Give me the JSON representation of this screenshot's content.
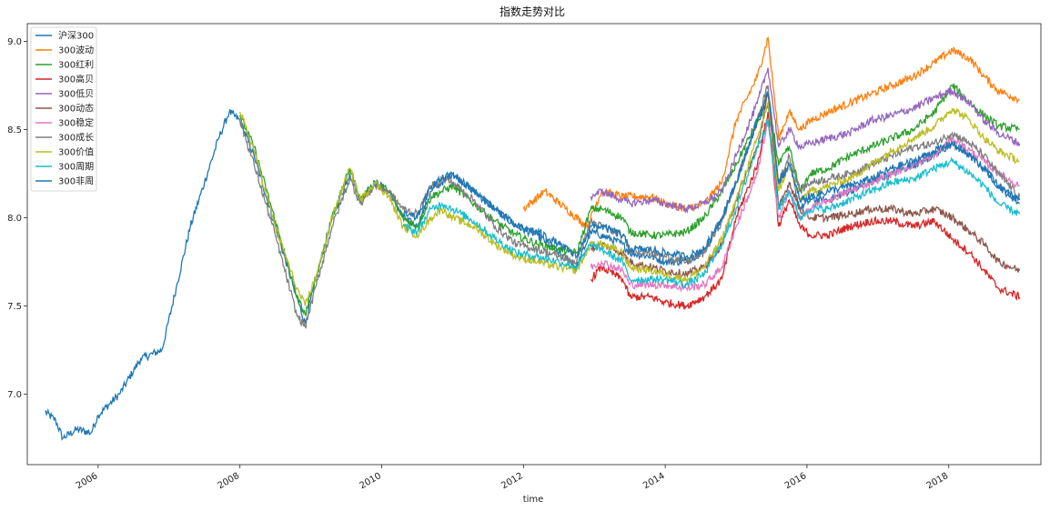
{
  "chart_data": {
    "type": "line",
    "title": "指数走势对比",
    "xlabel": "time",
    "ylabel": "",
    "xlim": [
      2005.0,
      2019.3
    ],
    "ylim": [
      6.6,
      9.1
    ],
    "x_ticks": [
      {
        "value": 2006,
        "label": "2006"
      },
      {
        "value": 2008,
        "label": "2008"
      },
      {
        "value": 2010,
        "label": "2010"
      },
      {
        "value": 2012,
        "label": "2012"
      },
      {
        "value": 2014,
        "label": "2014"
      },
      {
        "value": 2016,
        "label": "2016"
      },
      {
        "value": 2018,
        "label": "2018"
      }
    ],
    "y_ticks": [
      {
        "value": 7.0,
        "label": "7.0"
      },
      {
        "value": 7.5,
        "label": "7.5"
      },
      {
        "value": 8.0,
        "label": "8.0"
      },
      {
        "value": 8.5,
        "label": "8.5"
      },
      {
        "value": 9.0,
        "label": "9.0"
      }
    ],
    "legend_position": "top-left",
    "grid": false,
    "series": [
      {
        "name": "沪深300",
        "color": "#1f77b4",
        "x": [
          2005.25,
          2005.4,
          2005.5,
          2005.7,
          2005.9,
          2006.0,
          2006.3,
          2006.6,
          2006.9,
          2007.1,
          2007.3,
          2007.5,
          2007.7,
          2007.85,
          2008.0,
          2008.2,
          2008.5,
          2008.8,
          2008.92,
          2009.1,
          2009.3,
          2009.55,
          2009.7,
          2009.9,
          2010.1,
          2010.3,
          2010.5,
          2010.7,
          2010.85,
          2011.0,
          2011.3,
          2011.6,
          2011.9,
          2012.2,
          2012.5,
          2012.75,
          2012.95,
          2013.1,
          2013.4,
          2013.5,
          2013.8,
          2014.0,
          2014.3,
          2014.55,
          2014.8,
          2015.0,
          2015.3,
          2015.45,
          2015.6,
          2015.75,
          2015.9,
          2016.05,
          2016.3,
          2016.6,
          2016.9,
          2017.2,
          2017.5,
          2017.8,
          2018.05,
          2018.3,
          2018.5,
          2018.7,
          2019.0
        ],
        "values": [
          6.9,
          6.85,
          6.75,
          6.8,
          6.78,
          6.88,
          7.0,
          7.2,
          7.25,
          7.6,
          7.95,
          8.2,
          8.45,
          8.6,
          8.55,
          8.35,
          7.95,
          7.55,
          7.4,
          7.7,
          8.0,
          8.25,
          8.1,
          8.2,
          8.15,
          8.0,
          7.95,
          8.15,
          8.2,
          8.25,
          8.15,
          8.05,
          7.95,
          7.9,
          7.8,
          7.72,
          7.92,
          7.9,
          7.85,
          7.8,
          7.78,
          7.75,
          7.75,
          7.82,
          8.0,
          8.2,
          8.55,
          8.65,
          8.2,
          8.3,
          8.05,
          8.1,
          8.1,
          8.15,
          8.2,
          8.25,
          8.3,
          8.35,
          8.42,
          8.35,
          8.28,
          8.18,
          8.08
        ]
      },
      {
        "name": "300波动",
        "color": "#ff7f0e",
        "x": [
          2012.0,
          2012.3,
          2012.6,
          2012.9,
          2013.1,
          2013.4,
          2013.8,
          2014.0,
          2014.3,
          2014.55,
          2014.8,
          2015.0,
          2015.3,
          2015.45,
          2015.6,
          2015.75,
          2015.9,
          2016.05,
          2016.3,
          2016.6,
          2016.9,
          2017.2,
          2017.5,
          2017.8,
          2018.05,
          2018.3,
          2018.5,
          2018.7,
          2019.0
        ],
        "values": [
          8.05,
          8.15,
          8.05,
          7.95,
          8.15,
          8.12,
          8.12,
          8.08,
          8.05,
          8.08,
          8.2,
          8.55,
          8.8,
          9.02,
          8.45,
          8.6,
          8.5,
          8.55,
          8.6,
          8.65,
          8.7,
          8.75,
          8.8,
          8.88,
          8.95,
          8.9,
          8.8,
          8.72,
          8.67
        ]
      },
      {
        "name": "300红利",
        "color": "#2ca02c",
        "x": [
          2008.0,
          2008.2,
          2008.5,
          2008.8,
          2008.92,
          2009.1,
          2009.3,
          2009.55,
          2009.7,
          2009.9,
          2010.1,
          2010.3,
          2010.5,
          2010.7,
          2010.85,
          2011.0,
          2011.3,
          2011.6,
          2011.9,
          2012.2,
          2012.5,
          2012.75,
          2012.95,
          2013.1,
          2013.4,
          2013.5,
          2013.8,
          2014.0,
          2014.3,
          2014.55,
          2014.8,
          2015.0,
          2015.3,
          2015.45,
          2015.6,
          2015.75,
          2015.9,
          2016.05,
          2016.3,
          2016.6,
          2016.9,
          2017.2,
          2017.5,
          2017.8,
          2018.05,
          2018.3,
          2018.5,
          2018.7,
          2019.0
        ],
        "values": [
          8.58,
          8.4,
          7.98,
          7.55,
          7.45,
          7.7,
          8.0,
          8.28,
          8.1,
          8.2,
          8.15,
          8.0,
          7.95,
          8.12,
          8.15,
          8.18,
          8.08,
          7.98,
          7.9,
          7.85,
          7.82,
          7.8,
          8.05,
          8.05,
          8.0,
          7.92,
          7.9,
          7.9,
          7.92,
          8.0,
          8.15,
          8.3,
          8.55,
          8.7,
          8.3,
          8.4,
          8.15,
          8.25,
          8.28,
          8.35,
          8.4,
          8.45,
          8.5,
          8.6,
          8.75,
          8.65,
          8.58,
          8.52,
          8.5
        ]
      },
      {
        "name": "300高贝",
        "color": "#d62728",
        "x": [
          2012.95,
          2013.1,
          2013.4,
          2013.5,
          2013.8,
          2014.0,
          2014.3,
          2014.55,
          2014.8,
          2015.0,
          2015.3,
          2015.45,
          2015.6,
          2015.75,
          2015.9,
          2016.05,
          2016.3,
          2016.6,
          2016.9,
          2017.2,
          2017.5,
          2017.8,
          2018.05,
          2018.3,
          2018.5,
          2018.7,
          2019.0
        ],
        "values": [
          7.65,
          7.72,
          7.65,
          7.55,
          7.55,
          7.52,
          7.5,
          7.55,
          7.65,
          8.0,
          8.3,
          8.6,
          7.95,
          8.1,
          7.95,
          7.9,
          7.9,
          7.95,
          7.98,
          7.98,
          7.95,
          7.98,
          7.88,
          7.8,
          7.7,
          7.6,
          7.55
        ]
      },
      {
        "name": "300低贝",
        "color": "#9467bd",
        "x": [
          2012.95,
          2013.1,
          2013.4,
          2013.5,
          2013.8,
          2014.0,
          2014.3,
          2014.55,
          2014.8,
          2015.0,
          2015.3,
          2015.45,
          2015.6,
          2015.75,
          2015.9,
          2016.05,
          2016.3,
          2016.6,
          2016.9,
          2017.2,
          2017.5,
          2017.8,
          2018.05,
          2018.3,
          2018.5,
          2018.7,
          2019.0
        ],
        "values": [
          8.12,
          8.15,
          8.1,
          8.08,
          8.1,
          8.08,
          8.05,
          8.08,
          8.15,
          8.35,
          8.65,
          8.85,
          8.4,
          8.5,
          8.4,
          8.42,
          8.45,
          8.48,
          8.55,
          8.58,
          8.62,
          8.68,
          8.72,
          8.65,
          8.55,
          8.48,
          8.42
        ]
      },
      {
        "name": "300动态",
        "color": "#8c564b",
        "x": [
          2012.95,
          2013.1,
          2013.4,
          2013.5,
          2013.8,
          2014.0,
          2014.3,
          2014.55,
          2014.8,
          2015.0,
          2015.3,
          2015.45,
          2015.6,
          2015.75,
          2015.9,
          2016.05,
          2016.3,
          2016.6,
          2016.9,
          2017.2,
          2017.5,
          2017.8,
          2018.05,
          2018.3,
          2018.5,
          2018.7,
          2019.0
        ],
        "values": [
          7.82,
          7.85,
          7.8,
          7.75,
          7.72,
          7.7,
          7.68,
          7.72,
          7.85,
          8.1,
          8.4,
          8.7,
          8.05,
          8.2,
          8.05,
          8.0,
          8.0,
          8.02,
          8.05,
          8.05,
          8.02,
          8.05,
          8.0,
          7.92,
          7.85,
          7.75,
          7.7
        ]
      },
      {
        "name": "300稳定",
        "color": "#e377c2",
        "x": [
          2012.95,
          2013.1,
          2013.4,
          2013.5,
          2013.8,
          2014.0,
          2014.3,
          2014.55,
          2014.8,
          2015.0,
          2015.3,
          2015.45,
          2015.6,
          2015.75,
          2015.9,
          2016.05,
          2016.3,
          2016.6,
          2016.9,
          2017.2,
          2017.5,
          2017.8,
          2018.05,
          2018.3,
          2018.5,
          2018.7,
          2019.0
        ],
        "values": [
          7.72,
          7.75,
          7.7,
          7.62,
          7.62,
          7.62,
          7.6,
          7.62,
          7.72,
          7.95,
          8.25,
          8.55,
          8.0,
          8.15,
          8.0,
          8.05,
          8.1,
          8.15,
          8.2,
          8.25,
          8.3,
          8.35,
          8.45,
          8.38,
          8.32,
          8.25,
          8.18
        ]
      },
      {
        "name": "300成长",
        "color": "#7f7f7f",
        "x": [
          2008.0,
          2008.2,
          2008.5,
          2008.8,
          2008.92,
          2009.1,
          2009.3,
          2009.55,
          2009.7,
          2009.9,
          2010.1,
          2010.3,
          2010.5,
          2010.7,
          2010.85,
          2011.0,
          2011.3,
          2011.6,
          2011.9,
          2012.2,
          2012.5,
          2012.75,
          2012.95,
          2013.1,
          2013.4,
          2013.5,
          2013.8,
          2014.0,
          2014.3,
          2014.55,
          2014.8,
          2015.0,
          2015.3,
          2015.45,
          2015.6,
          2015.75,
          2015.9,
          2016.05,
          2016.3,
          2016.6,
          2016.9,
          2017.2,
          2017.5,
          2017.8,
          2018.05,
          2018.3,
          2018.5,
          2018.7,
          2019.0
        ],
        "values": [
          8.55,
          8.3,
          7.9,
          7.45,
          7.38,
          7.65,
          7.95,
          8.22,
          8.08,
          8.18,
          8.15,
          8.05,
          8.02,
          8.18,
          8.22,
          8.2,
          8.1,
          7.95,
          7.85,
          7.82,
          7.78,
          7.75,
          7.98,
          7.95,
          7.9,
          7.82,
          7.8,
          7.78,
          7.75,
          7.8,
          7.98,
          8.2,
          8.55,
          8.75,
          8.2,
          8.35,
          8.15,
          8.2,
          8.22,
          8.25,
          8.3,
          8.35,
          8.4,
          8.42,
          8.48,
          8.42,
          8.35,
          8.25,
          8.12
        ]
      },
      {
        "name": "300价值",
        "color": "#bcbd22",
        "x": [
          2008.0,
          2008.2,
          2008.5,
          2008.8,
          2008.92,
          2009.1,
          2009.3,
          2009.55,
          2009.7,
          2009.9,
          2010.1,
          2010.3,
          2010.5,
          2010.7,
          2010.85,
          2011.0,
          2011.3,
          2011.6,
          2011.9,
          2012.2,
          2012.5,
          2012.75,
          2012.95,
          2013.1,
          2013.4,
          2013.5,
          2013.8,
          2014.0,
          2014.3,
          2014.55,
          2014.8,
          2015.0,
          2015.3,
          2015.45,
          2015.6,
          2015.75,
          2015.9,
          2016.05,
          2016.3,
          2016.6,
          2016.9,
          2017.2,
          2017.5,
          2017.8,
          2018.05,
          2018.3,
          2018.5,
          2018.7,
          2019.0
        ],
        "values": [
          8.6,
          8.38,
          7.95,
          7.6,
          7.5,
          7.7,
          8.0,
          8.28,
          8.1,
          8.2,
          8.12,
          7.95,
          7.9,
          8.0,
          8.05,
          8.0,
          7.95,
          7.85,
          7.78,
          7.75,
          7.72,
          7.7,
          7.85,
          7.85,
          7.8,
          7.72,
          7.7,
          7.68,
          7.65,
          7.72,
          7.88,
          8.1,
          8.45,
          8.65,
          8.15,
          8.3,
          8.1,
          8.15,
          8.18,
          8.22,
          8.3,
          8.38,
          8.45,
          8.52,
          8.62,
          8.55,
          8.45,
          8.38,
          8.32
        ]
      },
      {
        "name": "300周期",
        "color": "#17becf",
        "x": [
          2010.3,
          2010.5,
          2010.7,
          2010.85,
          2011.0,
          2011.3,
          2011.6,
          2011.9,
          2012.2,
          2012.5,
          2012.75,
          2012.95,
          2013.1,
          2013.4,
          2013.5,
          2013.8,
          2014.0,
          2014.3,
          2014.55,
          2014.8,
          2015.0,
          2015.3,
          2015.45,
          2015.6,
          2015.75,
          2015.9,
          2016.05,
          2016.3,
          2016.6,
          2016.9,
          2017.2,
          2017.5,
          2017.8,
          2018.05,
          2018.3,
          2018.5,
          2018.7,
          2019.0
        ],
        "values": [
          7.95,
          7.92,
          8.05,
          8.08,
          8.05,
          7.98,
          7.88,
          7.8,
          7.78,
          7.75,
          7.72,
          7.85,
          7.82,
          7.75,
          7.65,
          7.65,
          7.65,
          7.62,
          7.68,
          7.85,
          8.05,
          8.4,
          8.55,
          8.05,
          8.15,
          8.0,
          8.05,
          8.05,
          8.1,
          8.15,
          8.2,
          8.22,
          8.28,
          8.32,
          8.25,
          8.18,
          8.08,
          8.02
        ]
      },
      {
        "name": "300非周",
        "color": "#1f77b4",
        "x": [
          2010.3,
          2010.5,
          2010.7,
          2010.85,
          2011.0,
          2011.3,
          2011.6,
          2011.9,
          2012.2,
          2012.5,
          2012.75,
          2012.95,
          2013.1,
          2013.4,
          2013.5,
          2013.8,
          2014.0,
          2014.3,
          2014.55,
          2014.8,
          2015.0,
          2015.3,
          2015.45,
          2015.6,
          2015.75,
          2015.9,
          2016.05,
          2016.3,
          2016.6,
          2016.9,
          2017.2,
          2017.5,
          2017.8,
          2018.05,
          2018.3,
          2018.5,
          2018.7,
          2019.0
        ],
        "values": [
          8.02,
          8.0,
          8.18,
          8.22,
          8.25,
          8.15,
          8.05,
          7.95,
          7.92,
          7.85,
          7.78,
          7.95,
          7.95,
          7.9,
          7.82,
          7.82,
          7.8,
          7.78,
          7.82,
          8.0,
          8.2,
          8.55,
          8.7,
          8.2,
          8.3,
          8.1,
          8.12,
          8.15,
          8.18,
          8.22,
          8.28,
          8.32,
          8.38,
          8.42,
          8.35,
          8.28,
          8.18,
          8.1
        ]
      }
    ]
  }
}
